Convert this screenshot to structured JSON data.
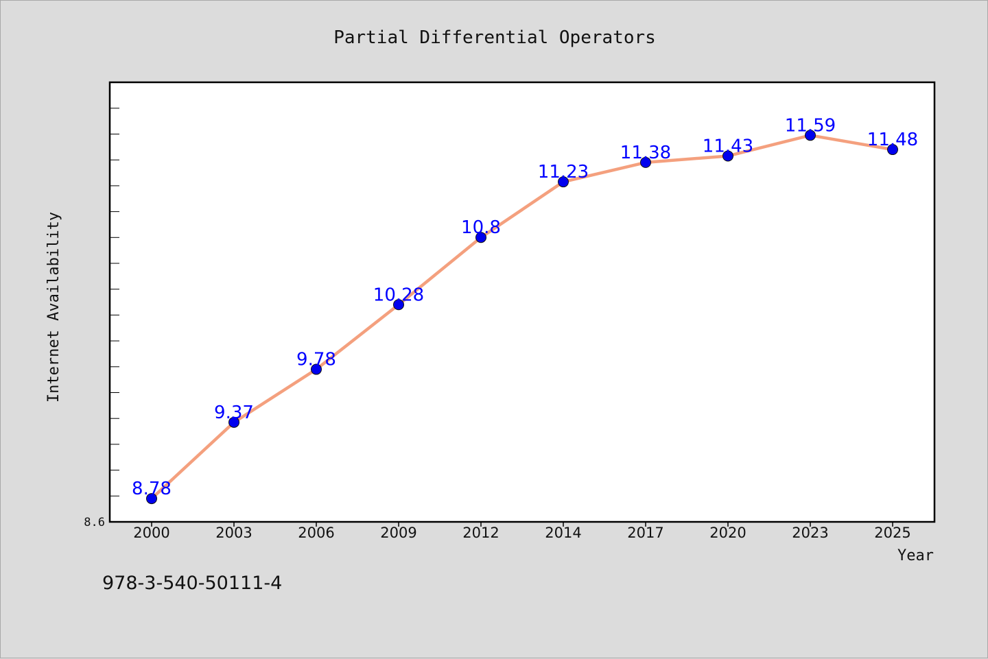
{
  "chart_data": {
    "type": "line",
    "title": "Partial Differential Operators",
    "xlabel": "Year",
    "ylabel": "Internet Availability",
    "categories": [
      "2000",
      "2003",
      "2006",
      "2009",
      "2012",
      "2014",
      "2017",
      "2020",
      "2023",
      "2025"
    ],
    "series": [
      {
        "values": [
          8.78,
          9.37,
          9.78,
          10.28,
          10.8,
          11.23,
          11.38,
          11.43,
          11.59,
          11.48
        ]
      }
    ],
    "y_tick_label": "8.6",
    "ylim": [
      8.6,
      12.0
    ],
    "grid": false,
    "legend": "none",
    "data_labels": true,
    "colors": {
      "line": "#f4a07e",
      "marker": "#0000ee",
      "data_label": "#0000ff",
      "plot_bg": "#ffffff",
      "page_bg": "#dcdcdc"
    }
  },
  "footer": {
    "isbn": "978-3-540-50111-4"
  }
}
